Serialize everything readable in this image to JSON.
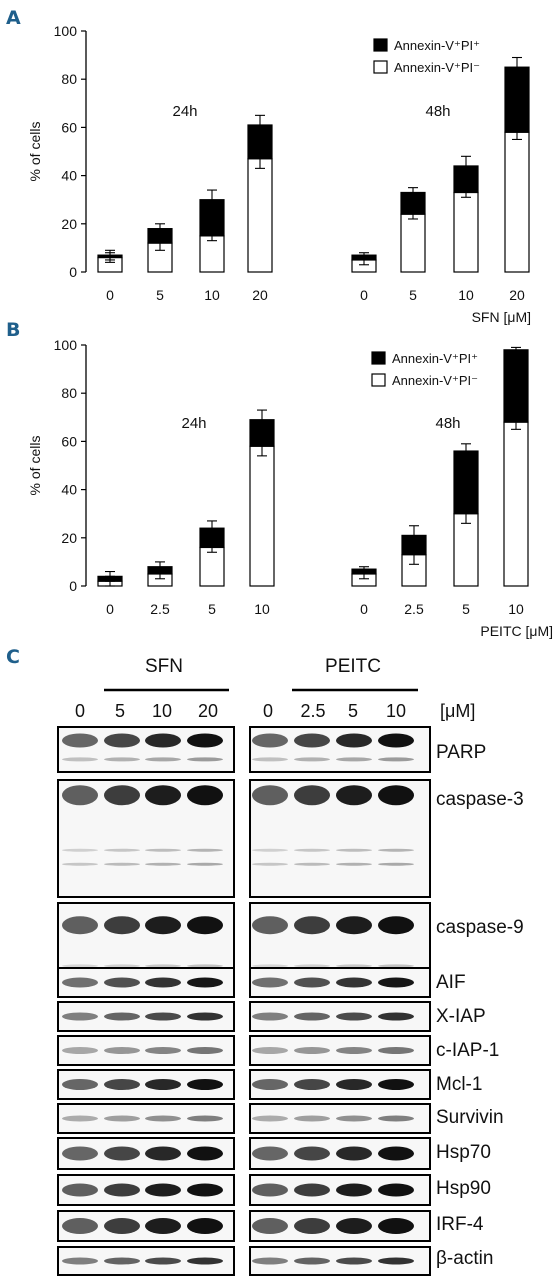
{
  "chart_data": [
    {
      "type": "bar",
      "panel": "A",
      "stacked": true,
      "ylabel": "% of cells",
      "ylim": [
        0,
        100
      ],
      "yticks": [
        0,
        20,
        40,
        60,
        80,
        100
      ],
      "xlabel": "SFN [μM]",
      "categories": [
        "0",
        "5",
        "10",
        "20",
        "0",
        "5",
        "10",
        "20"
      ],
      "groups": [
        {
          "label": "24h",
          "indices": [
            0,
            1,
            2,
            3
          ]
        },
        {
          "label": "48h",
          "indices": [
            4,
            5,
            6,
            7
          ]
        }
      ],
      "legend_position": "top-right",
      "series": [
        {
          "name": "Annexin-V⁺PI⁻",
          "color": "#ffffff",
          "values": [
            6,
            12,
            15,
            47,
            5,
            24,
            33,
            58
          ],
          "err": [
            2,
            3,
            2,
            4,
            2,
            2,
            2,
            3
          ]
        },
        {
          "name": "Annexin-V⁺PI⁺",
          "color": "#000000",
          "values": [
            1,
            6,
            15,
            14,
            2,
            9,
            11,
            27
          ],
          "err": [
            2,
            2,
            4,
            4,
            1,
            2,
            4,
            4
          ]
        }
      ]
    },
    {
      "type": "bar",
      "panel": "B",
      "stacked": true,
      "ylabel": "% of cells",
      "ylim": [
        0,
        100
      ],
      "yticks": [
        0,
        20,
        40,
        60,
        80,
        100
      ],
      "xlabel": "PEITC [μM]",
      "categories": [
        "0",
        "2.5",
        "5",
        "10",
        "0",
        "2.5",
        "5",
        "10"
      ],
      "groups": [
        {
          "label": "24h",
          "indices": [
            0,
            1,
            2,
            3
          ]
        },
        {
          "label": "48h",
          "indices": [
            4,
            5,
            6,
            7
          ]
        }
      ],
      "legend_position": "top-right",
      "series": [
        {
          "name": "Annexin-V⁺PI⁺",
          "color": "#000000",
          "values": [
            2,
            3,
            8,
            11,
            2,
            8,
            26,
            30
          ],
          "err": [
            2,
            2,
            3,
            4,
            1,
            4,
            3,
            1
          ]
        },
        {
          "name": "Annexin-V⁺PI⁻",
          "color": "#ffffff",
          "values": [
            2,
            5,
            16,
            58,
            5,
            13,
            30,
            68
          ],
          "err": [
            2,
            2,
            2,
            4,
            2,
            4,
            4,
            3
          ]
        }
      ]
    }
  ],
  "panel_a_letter": "A",
  "panel_b_letter": "B",
  "panel_c_letter": "C",
  "blot": {
    "groups": [
      "SFN",
      "PEITC"
    ],
    "concentrations_sfn": [
      "0",
      "5",
      "10",
      "20"
    ],
    "concentrations_peitc": [
      "0",
      "2.5",
      "5",
      "10"
    ],
    "unit": "[μM]",
    "rows": [
      {
        "label": "PARP"
      },
      {
        "label": "caspase-3"
      },
      {
        "label": "caspase-9"
      },
      {
        "label": "AIF"
      },
      {
        "label": "X-IAP"
      },
      {
        "label": "c-IAP-1"
      },
      {
        "label": "Mcl-1"
      },
      {
        "label": "Survivin"
      },
      {
        "label": "Hsp70"
      },
      {
        "label": "Hsp90"
      },
      {
        "label": "IRF-4"
      },
      {
        "label": "β-actin"
      }
    ]
  }
}
